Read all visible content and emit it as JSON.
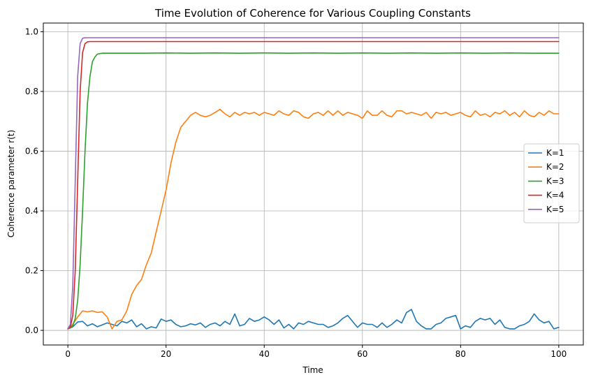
{
  "chart_data": {
    "type": "line",
    "title": "Time Evolution of Coherence for Various Coupling Constants",
    "xlabel": "Time",
    "ylabel": "Coherence parameter r(t)",
    "xlim": [
      -5,
      105
    ],
    "ylim": [
      -0.049,
      1.029
    ],
    "xticks": [
      0,
      20,
      40,
      60,
      80,
      100
    ],
    "xtick_labels": [
      "0",
      "20",
      "40",
      "60",
      "80",
      "100"
    ],
    "yticks": [
      0.0,
      0.2,
      0.4,
      0.6,
      0.8,
      1.0
    ],
    "ytick_labels": [
      "0.0",
      "0.2",
      "0.4",
      "0.6",
      "0.8",
      "1.0"
    ],
    "grid": true,
    "legend_position": "center-right",
    "series": [
      {
        "name": "K=1",
        "color": "#1f77b4",
        "x": [
          0,
          1,
          2,
          3,
          4,
          5,
          6,
          7,
          8,
          9,
          10,
          11,
          12,
          13,
          14,
          15,
          16,
          17,
          18,
          19,
          20,
          21,
          22,
          23,
          24,
          25,
          26,
          27,
          28,
          29,
          30,
          31,
          32,
          33,
          34,
          35,
          36,
          37,
          38,
          39,
          40,
          41,
          42,
          43,
          44,
          45,
          46,
          47,
          48,
          49,
          50,
          51,
          52,
          53,
          54,
          55,
          56,
          57,
          58,
          59,
          60,
          61,
          62,
          63,
          64,
          65,
          66,
          67,
          68,
          69,
          70,
          71,
          72,
          73,
          74,
          75,
          76,
          77,
          78,
          79,
          80,
          81,
          82,
          83,
          84,
          85,
          86,
          87,
          88,
          89,
          90,
          91,
          92,
          93,
          94,
          95,
          96,
          97,
          98,
          99,
          100
        ],
        "y": [
          0.005,
          0.012,
          0.028,
          0.03,
          0.015,
          0.022,
          0.012,
          0.018,
          0.025,
          0.02,
          0.015,
          0.03,
          0.025,
          0.035,
          0.012,
          0.022,
          0.005,
          0.012,
          0.008,
          0.038,
          0.03,
          0.035,
          0.02,
          0.012,
          0.015,
          0.022,
          0.018,
          0.025,
          0.01,
          0.02,
          0.025,
          0.015,
          0.03,
          0.02,
          0.055,
          0.015,
          0.02,
          0.04,
          0.03,
          0.035,
          0.045,
          0.035,
          0.02,
          0.035,
          0.008,
          0.02,
          0.005,
          0.025,
          0.02,
          0.03,
          0.025,
          0.02,
          0.02,
          0.01,
          0.015,
          0.025,
          0.04,
          0.05,
          0.03,
          0.01,
          0.025,
          0.02,
          0.02,
          0.01,
          0.025,
          0.01,
          0.02,
          0.035,
          0.025,
          0.06,
          0.07,
          0.03,
          0.015,
          0.005,
          0.005,
          0.02,
          0.025,
          0.04,
          0.045,
          0.05,
          0.005,
          0.015,
          0.01,
          0.03,
          0.04,
          0.035,
          0.04,
          0.02,
          0.035,
          0.01,
          0.005,
          0.005,
          0.015,
          0.02,
          0.03,
          0.055,
          0.035,
          0.025,
          0.03,
          0.005,
          0.01
        ]
      },
      {
        "name": "K=2",
        "color": "#ff7f0e",
        "x": [
          0,
          1,
          2,
          3,
          4,
          5,
          6,
          7,
          8,
          9,
          10,
          11,
          12,
          13,
          14,
          15,
          16,
          17,
          18,
          19,
          20,
          21,
          22,
          23,
          24,
          25,
          26,
          27,
          28,
          29,
          30,
          31,
          32,
          33,
          34,
          35,
          36,
          37,
          38,
          39,
          40,
          41,
          42,
          43,
          44,
          45,
          46,
          47,
          48,
          49,
          50,
          51,
          52,
          53,
          54,
          55,
          56,
          57,
          58,
          59,
          60,
          61,
          62,
          63,
          64,
          65,
          66,
          67,
          68,
          69,
          70,
          71,
          72,
          73,
          74,
          75,
          76,
          77,
          78,
          79,
          80,
          81,
          82,
          83,
          84,
          85,
          86,
          87,
          88,
          89,
          90,
          91,
          92,
          93,
          94,
          95,
          96,
          97,
          98,
          99,
          100
        ],
        "y": [
          0.005,
          0.02,
          0.045,
          0.065,
          0.062,
          0.065,
          0.06,
          0.062,
          0.045,
          0.005,
          0.03,
          0.035,
          0.065,
          0.12,
          0.15,
          0.17,
          0.22,
          0.26,
          0.33,
          0.4,
          0.47,
          0.56,
          0.63,
          0.68,
          0.7,
          0.72,
          0.73,
          0.72,
          0.715,
          0.72,
          0.73,
          0.74,
          0.725,
          0.715,
          0.73,
          0.72,
          0.73,
          0.725,
          0.73,
          0.72,
          0.73,
          0.725,
          0.72,
          0.735,
          0.725,
          0.72,
          0.735,
          0.73,
          0.715,
          0.71,
          0.725,
          0.73,
          0.72,
          0.735,
          0.72,
          0.735,
          0.72,
          0.73,
          0.725,
          0.72,
          0.71,
          0.735,
          0.72,
          0.72,
          0.735,
          0.72,
          0.715,
          0.735,
          0.735,
          0.725,
          0.73,
          0.725,
          0.72,
          0.73,
          0.71,
          0.73,
          0.725,
          0.73,
          0.72,
          0.725,
          0.73,
          0.72,
          0.715,
          0.735,
          0.72,
          0.725,
          0.715,
          0.73,
          0.725,
          0.735,
          0.72,
          0.73,
          0.715,
          0.735,
          0.72,
          0.715,
          0.73,
          0.72,
          0.735,
          0.725,
          0.725
        ]
      },
      {
        "name": "K=3",
        "color": "#2ca02c",
        "x": [
          0,
          0.5,
          1,
          1.5,
          2,
          2.5,
          3,
          3.5,
          4,
          4.5,
          5,
          5.5,
          6,
          7,
          8,
          10,
          15,
          20,
          25,
          30,
          35,
          40,
          45,
          50,
          55,
          60,
          65,
          70,
          75,
          80,
          85,
          90,
          95,
          100
        ],
        "y": [
          0.005,
          0.008,
          0.015,
          0.04,
          0.1,
          0.22,
          0.4,
          0.6,
          0.76,
          0.85,
          0.9,
          0.915,
          0.925,
          0.928,
          0.928,
          0.928,
          0.928,
          0.929,
          0.928,
          0.929,
          0.928,
          0.929,
          0.928,
          0.929,
          0.928,
          0.929,
          0.928,
          0.929,
          0.928,
          0.929,
          0.928,
          0.929,
          0.928,
          0.928
        ]
      },
      {
        "name": "K=4",
        "color": "#d62728",
        "x": [
          0,
          0.5,
          1,
          1.5,
          2,
          2.5,
          3,
          3.5,
          4,
          4.5,
          5,
          100
        ],
        "y": [
          0.005,
          0.01,
          0.05,
          0.2,
          0.5,
          0.8,
          0.93,
          0.96,
          0.966,
          0.967,
          0.967,
          0.967
        ]
      },
      {
        "name": "K=5",
        "color": "#9467bd",
        "x": [
          0,
          0.5,
          1,
          1.5,
          2,
          2.5,
          3,
          3.5,
          4,
          100
        ],
        "y": [
          0.005,
          0.02,
          0.15,
          0.5,
          0.85,
          0.96,
          0.978,
          0.98,
          0.98,
          0.98
        ]
      }
    ]
  }
}
